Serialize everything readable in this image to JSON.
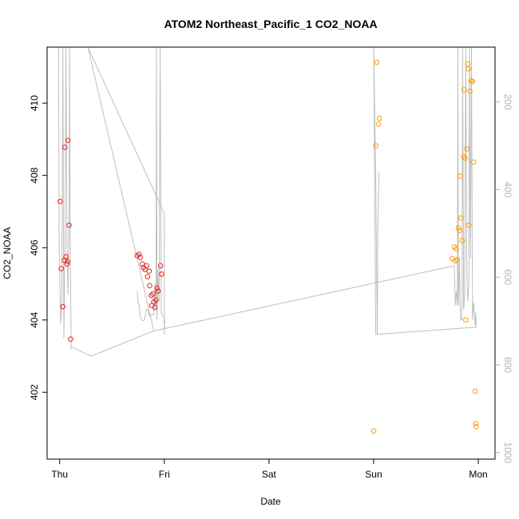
{
  "chart_data": {
    "type": "scatter",
    "title": "ATOM2 Northeast_Pacific_1 CO2_NOAA",
    "xlabel": "Date",
    "ylabel": "CO2_NOAA",
    "x_ticks": [
      {
        "label": "Thu",
        "day": 0
      },
      {
        "label": "Fri",
        "day": 1
      },
      {
        "label": "Sat",
        "day": 2
      },
      {
        "label": "Sun",
        "day": 3
      },
      {
        "label": "Mon",
        "day": 4
      }
    ],
    "xlim": [
      -0.12,
      4.16
    ],
    "ylim": [
      400.15,
      411.55
    ],
    "y_ticks": [
      402,
      404,
      406,
      408,
      410
    ],
    "y2_ticks": [
      200,
      400,
      600,
      800,
      1000
    ],
    "y2lim": [
      1015,
      75
    ],
    "colors": {
      "series1": "#e8201e",
      "series2": "#ff9900",
      "profile": "#bfbfbf",
      "axis": "#000000",
      "right_axis": "#b3b3b3"
    },
    "series": [
      {
        "points": [
          [
            0.005,
            407.28
          ],
          [
            0.015,
            405.42
          ],
          [
            0.03,
            404.37
          ],
          [
            0.045,
            405.65
          ],
          [
            0.05,
            408.78
          ],
          [
            0.06,
            405.75
          ],
          [
            0.07,
            405.55
          ],
          [
            0.075,
            405.62
          ],
          [
            0.08,
            408.97
          ],
          [
            0.09,
            406.62
          ],
          [
            0.105,
            403.47
          ],
          [
            0.74,
            405.78
          ],
          [
            0.76,
            405.82
          ],
          [
            0.77,
            405.73
          ],
          [
            0.79,
            405.55
          ],
          [
            0.8,
            405.45
          ],
          [
            0.815,
            405.4
          ],
          [
            0.83,
            405.5
          ],
          [
            0.84,
            405.2
          ],
          [
            0.855,
            405.35
          ],
          [
            0.86,
            404.95
          ],
          [
            0.875,
            404.68
          ],
          [
            0.88,
            404.4
          ],
          [
            0.89,
            404.72
          ],
          [
            0.9,
            404.5
          ],
          [
            0.91,
            404.35
          ],
          [
            0.92,
            404.55
          ],
          [
            0.93,
            404.88
          ],
          [
            0.94,
            404.8
          ],
          [
            0.965,
            405.5
          ],
          [
            0.975,
            405.27
          ]
        ]
      },
      {
        "points": [
          [
            3.0,
            400.93
          ],
          [
            3.02,
            408.82
          ],
          [
            3.03,
            411.13
          ],
          [
            3.045,
            409.42
          ],
          [
            3.055,
            409.58
          ],
          [
            3.75,
            405.7
          ],
          [
            3.77,
            406.02
          ],
          [
            3.78,
            405.64
          ],
          [
            3.79,
            405.97
          ],
          [
            3.8,
            405.66
          ],
          [
            3.81,
            406.55
          ],
          [
            3.82,
            406.47
          ],
          [
            3.83,
            407.98
          ],
          [
            3.835,
            406.82
          ],
          [
            3.845,
            406.2
          ],
          [
            3.86,
            408.52
          ],
          [
            3.865,
            410.37
          ],
          [
            3.875,
            408.47
          ],
          [
            3.88,
            404.0
          ],
          [
            3.89,
            408.73
          ],
          [
            3.9,
            411.08
          ],
          [
            3.905,
            410.95
          ],
          [
            3.91,
            406.62
          ],
          [
            3.92,
            410.33
          ],
          [
            3.93,
            410.62
          ],
          [
            3.945,
            410.6
          ],
          [
            3.955,
            408.37
          ],
          [
            3.97,
            402.03
          ],
          [
            3.975,
            401.13
          ],
          [
            3.98,
            401.05
          ]
        ]
      }
    ],
    "profile_path": [
      [
        -0.01,
        411.55
      ],
      [
        -0.005,
        406.0
      ],
      [
        0.01,
        403.9
      ],
      [
        0.02,
        404.5
      ],
      [
        0.03,
        411.55
      ],
      [
        0.04,
        403.5
      ],
      [
        0.05,
        405.8
      ],
      [
        0.06,
        411.55
      ],
      [
        0.07,
        406.0
      ],
      [
        0.08,
        404.7
      ],
      [
        0.09,
        406.8
      ],
      [
        0.095,
        411.55
      ],
      [
        0.1,
        406.5
      ],
      [
        0.11,
        403.2
      ],
      [
        0.115,
        403.25
      ],
      [
        0.3,
        403.0
      ],
      [
        0.9,
        403.7
      ],
      [
        0.27,
        411.55
      ],
      [
        1.0,
        406.95
      ],
      [
        1.0,
        403.6
      ],
      [
        1.005,
        404.0
      ],
      [
        0.97,
        404.2
      ],
      [
        0.96,
        411.55
      ],
      [
        0.95,
        404.5
      ],
      [
        0.94,
        405.4
      ],
      [
        0.93,
        404.0
      ],
      [
        0.925,
        411.55
      ],
      [
        0.92,
        404.3
      ],
      [
        0.91,
        405.0
      ],
      [
        0.9,
        404.15
      ],
      [
        0.88,
        404.15
      ],
      [
        0.86,
        404.1
      ],
      [
        0.85,
        404.2
      ],
      [
        0.84,
        404.3
      ],
      [
        0.83,
        404.3
      ],
      [
        0.81,
        404.0
      ],
      [
        0.8,
        403.98
      ],
      [
        0.78,
        404.0
      ],
      [
        0.77,
        404.1
      ],
      [
        0.76,
        404.4
      ],
      [
        0.75,
        404.5
      ],
      [
        0.74,
        404.8
      ]
    ],
    "profile_path2": [
      [
        0.905,
        403.7
      ],
      [
        3.77,
        405.5
      ],
      [
        3.78,
        404.4
      ],
      [
        3.79,
        404.8
      ],
      [
        3.8,
        404.4
      ],
      [
        3.805,
        411.55
      ],
      [
        3.81,
        404.4
      ],
      [
        3.82,
        405.6
      ],
      [
        3.83,
        404.0
      ],
      [
        3.84,
        404.05
      ],
      [
        3.845,
        404.0
      ],
      [
        3.85,
        411.55
      ],
      [
        3.86,
        404.3
      ],
      [
        3.87,
        404.7
      ],
      [
        3.88,
        411.55
      ],
      [
        3.89,
        405.4
      ],
      [
        3.9,
        404.5
      ],
      [
        3.91,
        405.0
      ],
      [
        3.915,
        411.55
      ],
      [
        3.925,
        405.7
      ],
      [
        3.935,
        411.55
      ],
      [
        3.945,
        404.0
      ],
      [
        3.955,
        404.5
      ],
      [
        3.96,
        404.2
      ],
      [
        3.97,
        403.85
      ],
      [
        3.975,
        404.2
      ],
      [
        3.98,
        403.8
      ],
      [
        3.02,
        403.6
      ],
      [
        3.0,
        411.55
      ],
      [
        3.02,
        407.9
      ],
      [
        3.035,
        403.6
      ],
      [
        3.04,
        406.4
      ],
      [
        3.05,
        408.1
      ]
    ]
  }
}
